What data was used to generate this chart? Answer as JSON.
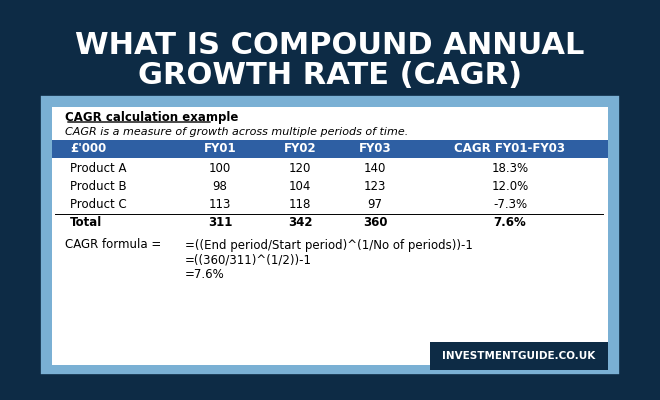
{
  "title_line1": "WHAT IS COMPOUND ANNUAL",
  "title_line2": "GROWTH RATE (CAGR)",
  "bg_color": "#0d2b45",
  "panel_border_color": "#7ab0d4",
  "panel_bg_color": "#ffffff",
  "section_title": "CAGR calculation example",
  "section_subtitle": "CAGR is a measure of growth across multiple periods of time.",
  "table_header": [
    "£'000",
    "FY01",
    "FY02",
    "FY03",
    "CAGR FY01-FY03"
  ],
  "table_header_bg": "#2e5fa3",
  "table_header_color": "#ffffff",
  "table_rows": [
    [
      "Product A",
      "100",
      "120",
      "140",
      "18.3%"
    ],
    [
      "Product B",
      "98",
      "104",
      "123",
      "12.0%"
    ],
    [
      "Product C",
      "113",
      "118",
      "97",
      "-7.3%"
    ],
    [
      "Total",
      "311",
      "342",
      "360",
      "7.6%"
    ]
  ],
  "formula_label": "CAGR formula =",
  "formula_lines": [
    "=((End period/Start period)^(1/No of periods))-1",
    "=((360/311)^(1/2))-1",
    "=7.6%"
  ],
  "watermark": "INVESTMENTGUIDE.CO.UK",
  "watermark_bg": "#0d2b45",
  "watermark_color": "#ffffff"
}
